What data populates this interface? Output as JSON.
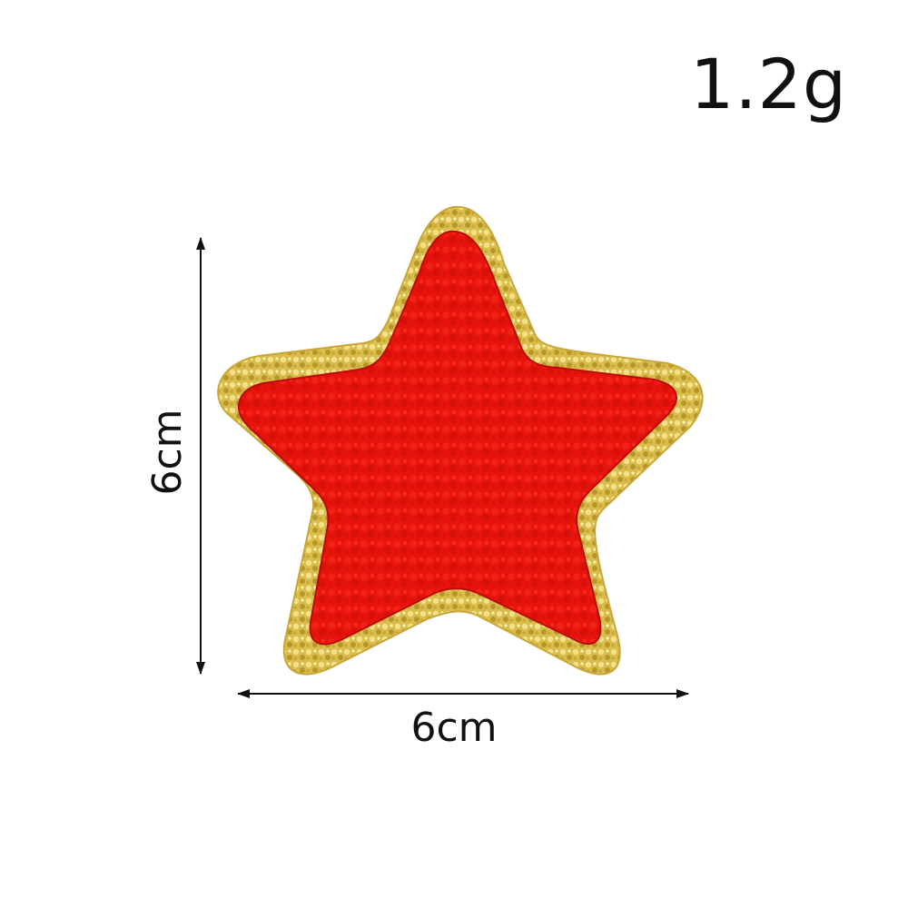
{
  "product": {
    "weight_label": "1.2g",
    "width_label": "6cm",
    "height_label": "6cm",
    "patch_color": "#e8140c",
    "border_color": "#d4b845"
  }
}
